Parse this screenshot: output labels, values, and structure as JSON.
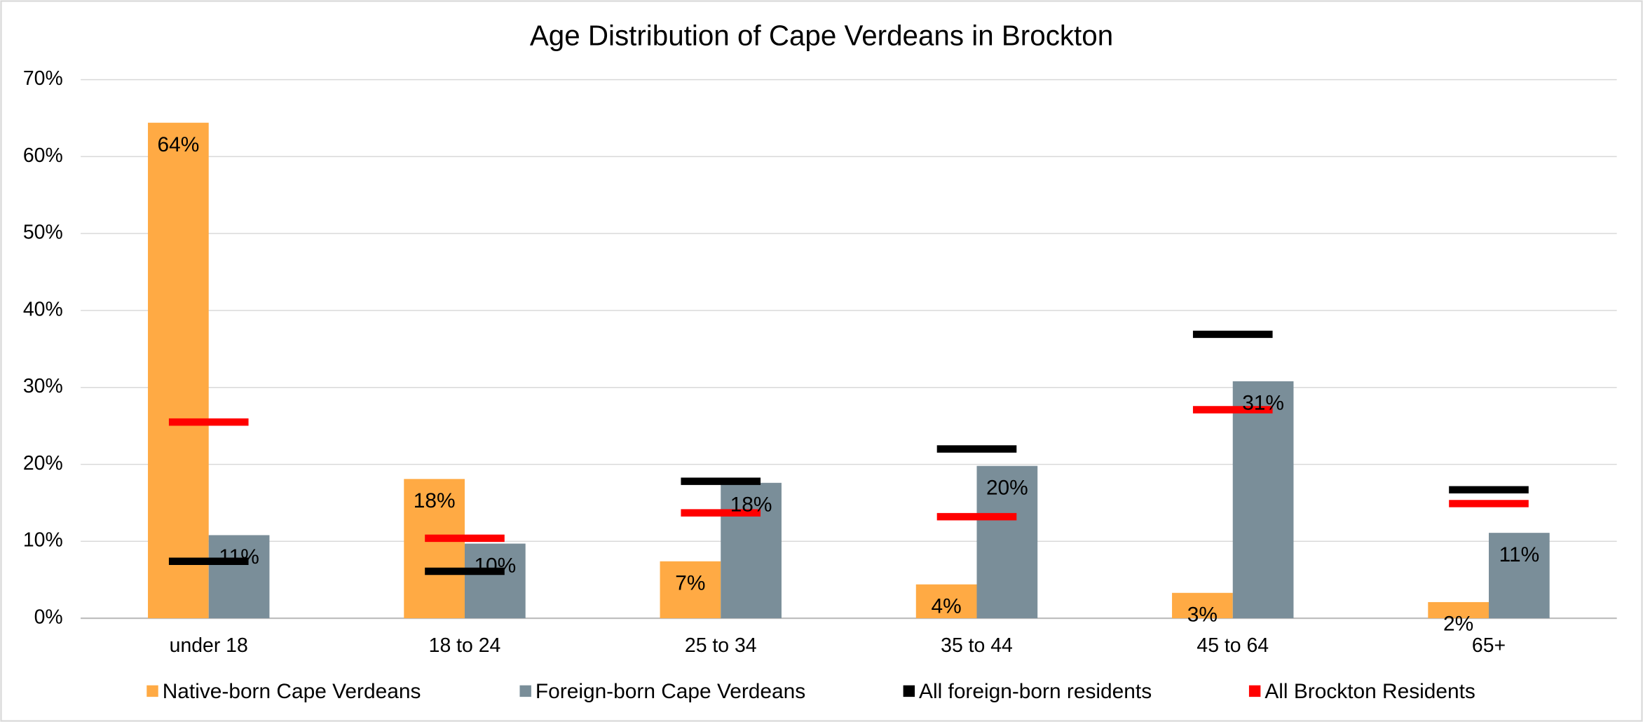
{
  "chart_data": {
    "type": "bar",
    "title": "Age Distribution of Cape Verdeans in Brockton",
    "categories": [
      "under 18",
      "18 to 24",
      "25 to 34",
      "35 to 44",
      "45 to 64",
      "65+"
    ],
    "series": [
      {
        "name": "Native-born Cape Verdeans",
        "color": "#ffaa44",
        "style": "bar",
        "values": [
          64.4,
          18.1,
          7.4,
          4.4,
          3.3,
          2.1
        ],
        "value_labels": [
          "64%",
          "18%",
          "7%",
          "4%",
          "3%",
          "2%"
        ]
      },
      {
        "name": "Foreign-born Cape Verdeans",
        "color": "#7a8e99",
        "style": "bar",
        "values": [
          10.8,
          9.7,
          17.6,
          19.8,
          30.8,
          11.1
        ],
        "value_labels": [
          "11%",
          "10%",
          "18%",
          "20%",
          "31%",
          "11%"
        ]
      },
      {
        "name": "All foreign-born residents",
        "color": "#000000",
        "style": "dash",
        "values": [
          7.4,
          6.1,
          17.8,
          22.0,
          36.9,
          16.7
        ]
      },
      {
        "name": "All Brockton Residents",
        "color": "#ff0000",
        "style": "dash",
        "values": [
          25.5,
          10.4,
          13.7,
          13.2,
          27.1,
          14.9
        ]
      }
    ],
    "ylim": [
      0,
      70
    ],
    "yticks": [
      {
        "value": 0,
        "label": "0%"
      },
      {
        "value": 10,
        "label": "10%"
      },
      {
        "value": 20,
        "label": "20%"
      },
      {
        "value": 30,
        "label": "30%"
      },
      {
        "value": 40,
        "label": "40%"
      },
      {
        "value": 50,
        "label": "50%"
      },
      {
        "value": 60,
        "label": "60%"
      },
      {
        "value": 70,
        "label": "70%"
      }
    ],
    "grid": true,
    "legend": "bottom"
  }
}
